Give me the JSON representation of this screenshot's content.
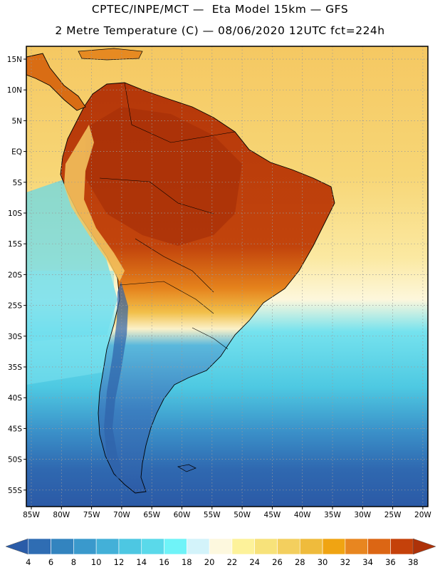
{
  "title": {
    "line1": "CPTEC/INPE/MCT —  Eta Model 15km — GFS",
    "line2": "2 Metre Temperature (C) — 08/06/2020 12UTC fct=224h"
  },
  "map": {
    "lat_labels": [
      "15N",
      "10N",
      "5N",
      "EQ",
      "5S",
      "10S",
      "15S",
      "20S",
      "25S",
      "30S",
      "35S",
      "40S",
      "45S",
      "50S",
      "55S"
    ],
    "lon_labels": [
      "85W",
      "80W",
      "75W",
      "70W",
      "65W",
      "60W",
      "55W",
      "50W",
      "45W",
      "40W",
      "35W",
      "30W",
      "25W",
      "20W"
    ],
    "colors": {
      "border": "#000000",
      "grid": "#9a9a9a",
      "coast": "#000000",
      "ocean_warm": "#f6d06a",
      "ocean_mid": "#fdf5c8",
      "ocean_cool": "#54d6e6",
      "ocean_cold": "#2f64ad"
    }
  },
  "colorbar": {
    "labels": [
      "4",
      "6",
      "8",
      "10",
      "12",
      "14",
      "16",
      "18",
      "20",
      "22",
      "24",
      "26",
      "28",
      "30",
      "32",
      "34",
      "36",
      "38"
    ],
    "colors": [
      "#2a5ca8",
      "#2f6db3",
      "#3384bf",
      "#3a99cc",
      "#43b0d8",
      "#4dc7e2",
      "#5ad9ea",
      "#6ff3f8",
      "#d3f3fa",
      "#fdf8de",
      "#fdf29a",
      "#f7e27a",
      "#f3cf5e",
      "#efbb3c",
      "#f0a412",
      "#e88620",
      "#dc6614",
      "#c5410a",
      "#ad3209"
    ]
  }
}
